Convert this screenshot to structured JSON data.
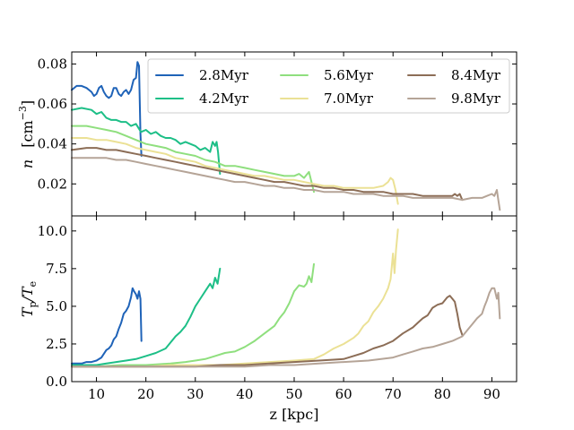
{
  "chart_data": [
    {
      "type": "line",
      "panel": "top",
      "ylabel_math": "n",
      "ylabel_unit": "[cm",
      "ylabel_unit_sup": "−3",
      "ylabel_unit_close": "]",
      "xlim": [
        5,
        95
      ],
      "ylim": [
        0.004,
        0.086
      ],
      "yticks": [
        0.02,
        0.04,
        0.06,
        0.08
      ],
      "ytick_labels": [
        "0.02",
        "0.04",
        "0.06",
        "0.08"
      ],
      "legend": {
        "placement": "top-right",
        "columns": 3
      },
      "series": [
        {
          "name": "2.8Myr",
          "color": "#1f63b8",
          "x": [
            5,
            6,
            7,
            8,
            9,
            9.5,
            10,
            10.5,
            11,
            11.5,
            12,
            12.5,
            13,
            13.5,
            14,
            14.5,
            15,
            15.5,
            16,
            16.5,
            17,
            17.5,
            18,
            18.3,
            18.6,
            18.9,
            19.1
          ],
          "y": [
            0.067,
            0.069,
            0.069,
            0.068,
            0.066,
            0.064,
            0.065,
            0.068,
            0.069,
            0.066,
            0.064,
            0.063,
            0.064,
            0.068,
            0.068,
            0.065,
            0.064,
            0.066,
            0.067,
            0.065,
            0.067,
            0.072,
            0.073,
            0.081,
            0.079,
            0.045,
            0.034
          ]
        },
        {
          "name": "4.2Myr",
          "color": "#1dbf87",
          "x": [
            5,
            7,
            9,
            10,
            11,
            12,
            13,
            14,
            15,
            16,
            17,
            18,
            19,
            20,
            21,
            22,
            23,
            24,
            25,
            26,
            27,
            28,
            29,
            30,
            31,
            32,
            33,
            33.5,
            34,
            34.3,
            34.6,
            35
          ],
          "y": [
            0.057,
            0.058,
            0.057,
            0.055,
            0.056,
            0.053,
            0.052,
            0.052,
            0.051,
            0.051,
            0.049,
            0.05,
            0.046,
            0.047,
            0.045,
            0.046,
            0.044,
            0.043,
            0.043,
            0.042,
            0.04,
            0.041,
            0.04,
            0.039,
            0.037,
            0.038,
            0.036,
            0.041,
            0.039,
            0.041,
            0.036,
            0.025
          ]
        },
        {
          "name": "5.6Myr",
          "color": "#8fdf7e",
          "x": [
            5,
            8,
            10,
            12,
            14,
            16,
            18,
            20,
            22,
            24,
            26,
            28,
            30,
            32,
            34,
            36,
            38,
            40,
            42,
            44,
            46,
            48,
            50,
            51,
            52,
            53,
            53.5,
            54
          ],
          "y": [
            0.049,
            0.049,
            0.048,
            0.047,
            0.046,
            0.044,
            0.042,
            0.04,
            0.039,
            0.038,
            0.036,
            0.035,
            0.034,
            0.032,
            0.031,
            0.029,
            0.029,
            0.028,
            0.027,
            0.026,
            0.025,
            0.024,
            0.024,
            0.025,
            0.023,
            0.026,
            0.021,
            0.016
          ]
        },
        {
          "name": "7.0Myr",
          "color": "#ebe195",
          "x": [
            5,
            8,
            10,
            12,
            14,
            16,
            18,
            20,
            22,
            24,
            26,
            28,
            30,
            32,
            34,
            36,
            38,
            40,
            42,
            44,
            46,
            48,
            50,
            52,
            54,
            56,
            58,
            60,
            62,
            64,
            66,
            68,
            69,
            69.5,
            70,
            70.5,
            71
          ],
          "y": [
            0.043,
            0.043,
            0.042,
            0.042,
            0.041,
            0.04,
            0.038,
            0.037,
            0.036,
            0.035,
            0.033,
            0.032,
            0.031,
            0.029,
            0.028,
            0.027,
            0.026,
            0.025,
            0.024,
            0.024,
            0.023,
            0.022,
            0.022,
            0.021,
            0.02,
            0.019,
            0.019,
            0.018,
            0.018,
            0.018,
            0.018,
            0.019,
            0.021,
            0.023,
            0.022,
            0.017,
            0.01
          ]
        },
        {
          "name": "8.4Myr",
          "color": "#8c6d56",
          "x": [
            5,
            8,
            10,
            12,
            14,
            16,
            18,
            20,
            22,
            24,
            26,
            28,
            30,
            32,
            34,
            36,
            38,
            40,
            42,
            44,
            46,
            48,
            50,
            52,
            54,
            56,
            58,
            60,
            62,
            64,
            66,
            68,
            70,
            72,
            74,
            76,
            78,
            80,
            82,
            82.5,
            83,
            83.5,
            84
          ],
          "y": [
            0.037,
            0.038,
            0.038,
            0.037,
            0.037,
            0.036,
            0.035,
            0.034,
            0.033,
            0.032,
            0.031,
            0.03,
            0.029,
            0.028,
            0.027,
            0.026,
            0.025,
            0.024,
            0.023,
            0.022,
            0.021,
            0.021,
            0.02,
            0.019,
            0.019,
            0.018,
            0.018,
            0.017,
            0.017,
            0.016,
            0.016,
            0.016,
            0.015,
            0.015,
            0.015,
            0.014,
            0.014,
            0.014,
            0.014,
            0.015,
            0.014,
            0.015,
            0.012
          ]
        },
        {
          "name": "9.8Myr",
          "color": "#b5a497",
          "x": [
            5,
            8,
            10,
            12,
            14,
            16,
            18,
            20,
            22,
            24,
            26,
            28,
            30,
            32,
            34,
            36,
            38,
            40,
            42,
            44,
            46,
            48,
            50,
            52,
            54,
            56,
            58,
            60,
            62,
            64,
            66,
            68,
            70,
            72,
            74,
            76,
            78,
            80,
            82,
            84,
            86,
            88,
            89,
            90,
            90.5,
            91,
            91.3,
            91.6
          ],
          "y": [
            0.033,
            0.033,
            0.033,
            0.033,
            0.032,
            0.032,
            0.031,
            0.03,
            0.029,
            0.028,
            0.027,
            0.026,
            0.025,
            0.024,
            0.023,
            0.022,
            0.021,
            0.021,
            0.02,
            0.019,
            0.019,
            0.018,
            0.018,
            0.017,
            0.017,
            0.016,
            0.016,
            0.016,
            0.015,
            0.015,
            0.015,
            0.014,
            0.014,
            0.014,
            0.013,
            0.013,
            0.013,
            0.013,
            0.013,
            0.012,
            0.013,
            0.013,
            0.014,
            0.015,
            0.014,
            0.017,
            0.012,
            0.007
          ]
        }
      ]
    },
    {
      "type": "line",
      "panel": "bottom",
      "ylabel_main": "T",
      "ylabel_sub1": "p",
      "ylabel_sep": "/T",
      "ylabel_sub2": "e",
      "xlabel": "z [kpc]",
      "xlim": [
        5,
        95
      ],
      "ylim": [
        0,
        11
      ],
      "xticks": [
        10,
        20,
        30,
        40,
        50,
        60,
        70,
        80,
        90
      ],
      "xtick_labels": [
        "10",
        "20",
        "30",
        "40",
        "50",
        "60",
        "70",
        "80",
        "90"
      ],
      "yticks": [
        0,
        2.5,
        5.0,
        7.5,
        10.0
      ],
      "ytick_labels": [
        "0.0",
        "2.5",
        "5.0",
        "7.5",
        "10.0"
      ],
      "series": [
        {
          "name": "2.8Myr",
          "color": "#1f63b8",
          "x": [
            5,
            6,
            7,
            8,
            9,
            10,
            11,
            12,
            12.5,
            13,
            13.5,
            14,
            14.5,
            15,
            15.5,
            16,
            16.5,
            17,
            17.3,
            17.6,
            18,
            18.3,
            18.6,
            18.9,
            19.1
          ],
          "y": [
            1.2,
            1.2,
            1.2,
            1.3,
            1.3,
            1.4,
            1.6,
            2.1,
            2.2,
            2.4,
            2.8,
            3.0,
            3.5,
            3.9,
            4.5,
            4.7,
            5.0,
            5.6,
            6.2,
            6.0,
            5.8,
            5.5,
            6.0,
            5.5,
            2.7
          ]
        },
        {
          "name": "4.2Myr",
          "color": "#1dbf87",
          "x": [
            5,
            8,
            10,
            12,
            14,
            16,
            18,
            20,
            22,
            24,
            25,
            26,
            27,
            28,
            29,
            30,
            31,
            32,
            33,
            33.5,
            34,
            34.5,
            35
          ],
          "y": [
            1.1,
            1.1,
            1.1,
            1.2,
            1.3,
            1.4,
            1.5,
            1.7,
            1.9,
            2.2,
            2.6,
            3.0,
            3.3,
            3.7,
            4.3,
            5.0,
            5.5,
            6.0,
            6.5,
            6.2,
            6.9,
            6.5,
            7.5
          ]
        },
        {
          "name": "5.6Myr",
          "color": "#8fdf7e",
          "x": [
            5,
            10,
            15,
            20,
            25,
            28,
            30,
            32,
            34,
            36,
            38,
            40,
            42,
            44,
            46,
            47,
            48,
            49,
            50,
            51,
            52,
            52.5,
            53,
            53.5,
            54
          ],
          "y": [
            1.0,
            1.0,
            1.1,
            1.1,
            1.2,
            1.3,
            1.4,
            1.5,
            1.7,
            1.9,
            2.0,
            2.3,
            2.7,
            3.2,
            3.7,
            4.2,
            4.6,
            5.2,
            6.0,
            6.4,
            6.3,
            6.5,
            7.0,
            6.6,
            7.8
          ]
        },
        {
          "name": "7.0Myr",
          "color": "#ebe195",
          "x": [
            5,
            10,
            15,
            20,
            25,
            30,
            35,
            40,
            45,
            50,
            54,
            56,
            58,
            60,
            62,
            63,
            64,
            65,
            66,
            67,
            68,
            69,
            69.5,
            70,
            70.3,
            70.6,
            71
          ],
          "y": [
            1.0,
            1.0,
            1.0,
            1.0,
            1.1,
            1.1,
            1.1,
            1.2,
            1.3,
            1.4,
            1.5,
            1.8,
            2.2,
            2.5,
            2.9,
            3.2,
            3.7,
            4.0,
            4.6,
            5.0,
            5.5,
            6.2,
            6.8,
            8.5,
            7.2,
            8.7,
            10.1
          ]
        },
        {
          "name": "8.4Myr",
          "color": "#8c6d56",
          "x": [
            5,
            10,
            15,
            20,
            25,
            30,
            35,
            40,
            45,
            50,
            55,
            60,
            62,
            64,
            66,
            68,
            70,
            72,
            74,
            75,
            76,
            77,
            78,
            79,
            80,
            81,
            81.5,
            82,
            82.5,
            83,
            83.5,
            84
          ],
          "y": [
            1.0,
            1.0,
            1.0,
            1.0,
            1.0,
            1.0,
            1.1,
            1.1,
            1.2,
            1.3,
            1.4,
            1.5,
            1.7,
            1.9,
            2.2,
            2.4,
            2.7,
            3.2,
            3.6,
            3.9,
            4.2,
            4.4,
            4.9,
            5.1,
            5.2,
            5.6,
            5.7,
            5.5,
            5.3,
            4.5,
            3.6,
            3.1
          ]
        },
        {
          "name": "9.8Myr",
          "color": "#b5a497",
          "x": [
            5,
            10,
            15,
            20,
            25,
            30,
            35,
            40,
            45,
            50,
            55,
            60,
            65,
            70,
            72,
            74,
            76,
            78,
            80,
            82,
            84,
            85,
            86,
            87,
            88,
            88.5,
            89,
            89.5,
            90,
            90.5,
            91,
            91.3,
            91.6
          ],
          "y": [
            1.0,
            1.0,
            1.0,
            1.0,
            1.0,
            1.0,
            1.0,
            1.0,
            1.1,
            1.1,
            1.2,
            1.3,
            1.4,
            1.6,
            1.8,
            2.0,
            2.2,
            2.3,
            2.5,
            2.7,
            3.0,
            3.4,
            3.8,
            4.2,
            4.5,
            5.0,
            5.4,
            5.9,
            6.2,
            6.2,
            5.5,
            5.9,
            4.2
          ]
        }
      ]
    }
  ]
}
